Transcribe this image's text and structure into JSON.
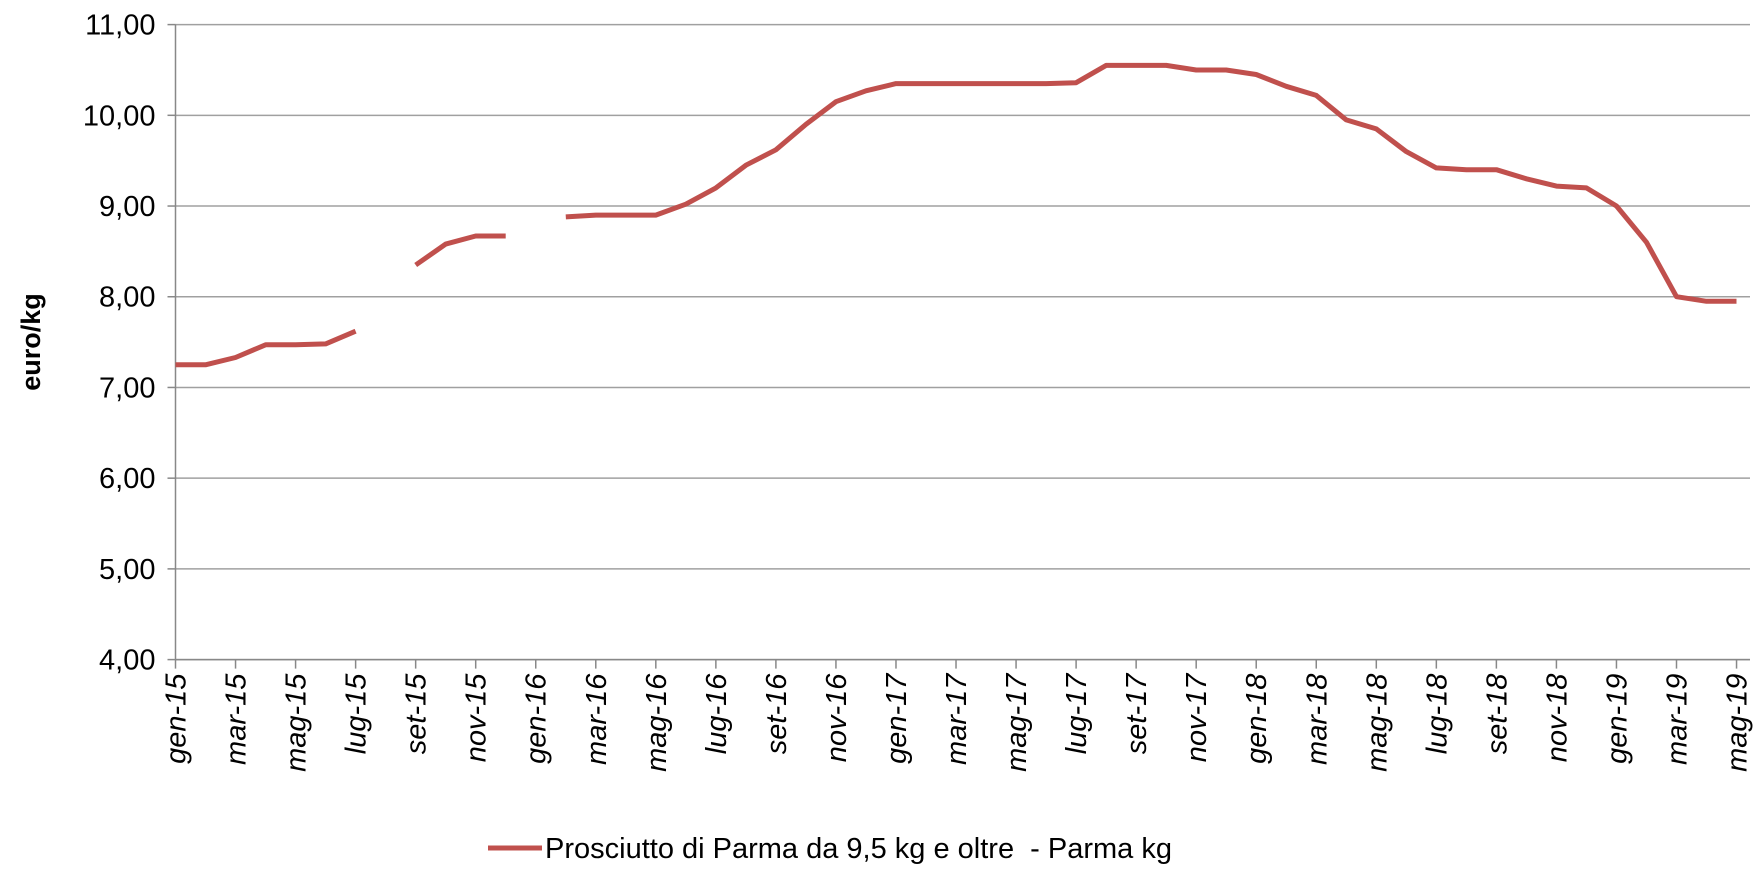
{
  "chart_data": {
    "type": "line",
    "y_label": "euro/kg",
    "categories": [
      "gen-15",
      null,
      "mar-15",
      null,
      "mag-15",
      null,
      "lug-15",
      null,
      "set-15",
      null,
      "nov-15",
      null,
      "gen-16",
      null,
      "mar-16",
      null,
      "mag-16",
      null,
      "lug-16",
      null,
      "set-16",
      null,
      "nov-16",
      null,
      "gen-17",
      null,
      "mar-17",
      null,
      "mag-17",
      null,
      "lug-17",
      null,
      "set-17",
      null,
      "nov-17",
      null,
      "gen-18",
      null,
      "mar-18",
      null,
      "mag-18",
      null,
      "lug-18",
      null,
      "set-18",
      null,
      "nov-18",
      null,
      "gen-19",
      null,
      "mar-19",
      null,
      "mag-19"
    ],
    "series": [
      {
        "name": "Prosciutto di Parma da 9,5 kg e oltre  - Parma kg",
        "color": "#c0504d",
        "values": [
          7.25,
          7.25,
          7.33,
          7.47,
          7.47,
          7.48,
          7.62,
          null,
          8.35,
          8.58,
          8.67,
          8.67,
          null,
          8.88,
          8.9,
          8.9,
          8.9,
          9.02,
          9.2,
          9.45,
          9.62,
          9.9,
          10.15,
          10.27,
          10.35,
          10.35,
          10.35,
          10.35,
          10.35,
          10.35,
          10.36,
          10.55,
          10.55,
          10.55,
          10.5,
          10.5,
          10.45,
          10.32,
          10.22,
          9.95,
          9.85,
          9.6,
          9.42,
          9.4,
          9.4,
          9.3,
          9.22,
          9.2,
          9.0,
          8.6,
          8.0,
          7.95,
          7.95
        ]
      }
    ],
    "ylim": [
      4,
      11
    ],
    "yticks": [
      {
        "value": 4,
        "label": "4,00"
      },
      {
        "value": 5,
        "label": "5,00"
      },
      {
        "value": 6,
        "label": "6,00"
      },
      {
        "value": 7,
        "label": "7,00"
      },
      {
        "value": 8,
        "label": "8,00"
      },
      {
        "value": 9,
        "label": "9,00"
      },
      {
        "value": 10,
        "label": "10,00"
      },
      {
        "value": 11,
        "label": "11,00"
      }
    ],
    "grid": true
  }
}
